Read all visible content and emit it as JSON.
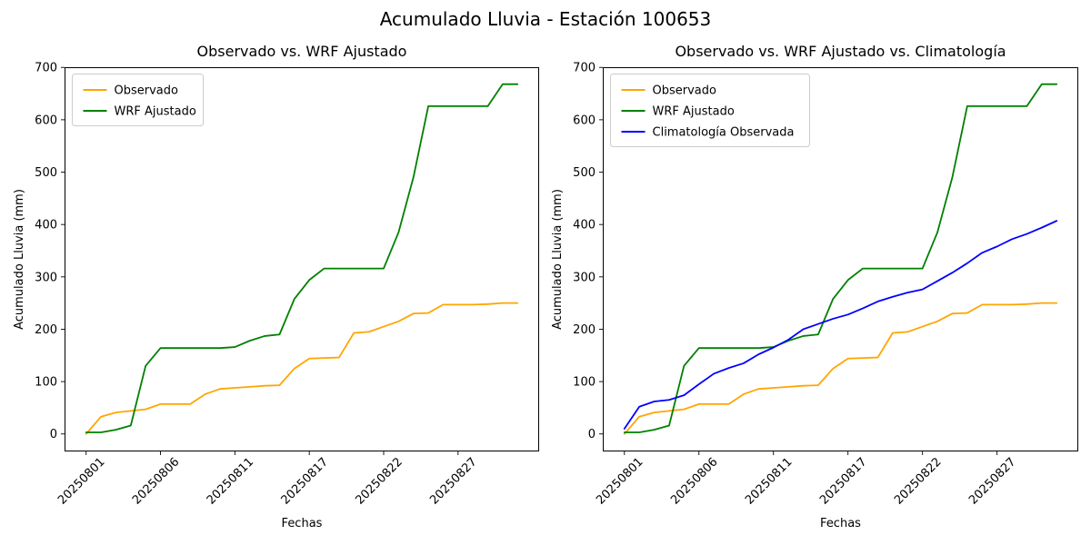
{
  "suptitle": "Acumulado Lluvia - Estación 100653",
  "chart_data": [
    {
      "type": "line",
      "title": "Observado vs. WRF Ajustado",
      "xlabel": "Fechas",
      "ylabel": "Acumulado Lluvia (mm)",
      "x_categories": [
        "20250801",
        "20250802",
        "20250803",
        "20250804",
        "20250805",
        "20250806",
        "20250807",
        "20250808",
        "20250809",
        "20250810",
        "20250811",
        "20250812",
        "20250813",
        "20250814",
        "20250815",
        "20250817",
        "20250818",
        "20250819",
        "20250820",
        "20250821",
        "20250822",
        "20250823",
        "20250824",
        "20250825",
        "20250826",
        "20250827",
        "20250828",
        "20250829",
        "20250830",
        "20250831"
      ],
      "xtick_indices": [
        0,
        5,
        10,
        15,
        20,
        25
      ],
      "xtick_labels": [
        "20250801",
        "20250806",
        "20250811",
        "20250817",
        "20250822",
        "20250827"
      ],
      "yticks": [
        0,
        100,
        200,
        300,
        400,
        500,
        600,
        700
      ],
      "ylim": [
        -33,
        700
      ],
      "grid": false,
      "legend_position": "upper-left",
      "series": [
        {
          "name": "Observado",
          "color": "#FFA500",
          "values": [
            0,
            33,
            41,
            44,
            47,
            57,
            57,
            57,
            76,
            86,
            88,
            90,
            92,
            93,
            125,
            144,
            145,
            146,
            193,
            195,
            205,
            215,
            230,
            231,
            247,
            247,
            247,
            248,
            250,
            250
          ]
        },
        {
          "name": "WRF Ajustado",
          "color": "#008000",
          "values": [
            3,
            3,
            8,
            16,
            130,
            164,
            164,
            164,
            164,
            164,
            166,
            178,
            187,
            190,
            258,
            294,
            316,
            316,
            316,
            316,
            316,
            385,
            490,
            626,
            626,
            626,
            626,
            626,
            668,
            668
          ]
        }
      ]
    },
    {
      "type": "line",
      "title": "Observado vs. WRF Ajustado vs. Climatología",
      "xlabel": "Fechas",
      "ylabel": "Acumulado Lluvia (mm)",
      "x_categories": [
        "20250801",
        "20250802",
        "20250803",
        "20250804",
        "20250805",
        "20250806",
        "20250807",
        "20250808",
        "20250809",
        "20250810",
        "20250811",
        "20250812",
        "20250813",
        "20250814",
        "20250815",
        "20250817",
        "20250818",
        "20250819",
        "20250820",
        "20250821",
        "20250822",
        "20250823",
        "20250824",
        "20250825",
        "20250826",
        "20250827",
        "20250828",
        "20250829",
        "20250830",
        "20250831"
      ],
      "xtick_indices": [
        0,
        5,
        10,
        15,
        20,
        25
      ],
      "xtick_labels": [
        "20250801",
        "20250806",
        "20250811",
        "20250817",
        "20250822",
        "20250827"
      ],
      "yticks": [
        0,
        100,
        200,
        300,
        400,
        500,
        600,
        700
      ],
      "ylim": [
        -33,
        700
      ],
      "grid": false,
      "legend_position": "upper-left",
      "series": [
        {
          "name": "Observado",
          "color": "#FFA500",
          "values": [
            0,
            33,
            41,
            44,
            47,
            57,
            57,
            57,
            76,
            86,
            88,
            90,
            92,
            93,
            125,
            144,
            145,
            146,
            193,
            195,
            205,
            215,
            230,
            231,
            247,
            247,
            247,
            248,
            250,
            250
          ]
        },
        {
          "name": "WRF Ajustado",
          "color": "#008000",
          "values": [
            3,
            3,
            8,
            16,
            130,
            164,
            164,
            164,
            164,
            164,
            166,
            178,
            187,
            190,
            258,
            294,
            316,
            316,
            316,
            316,
            316,
            385,
            490,
            626,
            626,
            626,
            626,
            626,
            668,
            668
          ]
        },
        {
          "name": "Climatología Observada",
          "color": "#0000FF",
          "values": [
            10,
            52,
            62,
            65,
            74,
            95,
            115,
            126,
            135,
            152,
            165,
            180,
            200,
            210,
            220,
            228,
            240,
            253,
            262,
            270,
            276,
            292,
            308,
            326,
            346,
            358,
            372,
            382,
            394,
            407
          ]
        }
      ]
    }
  ]
}
